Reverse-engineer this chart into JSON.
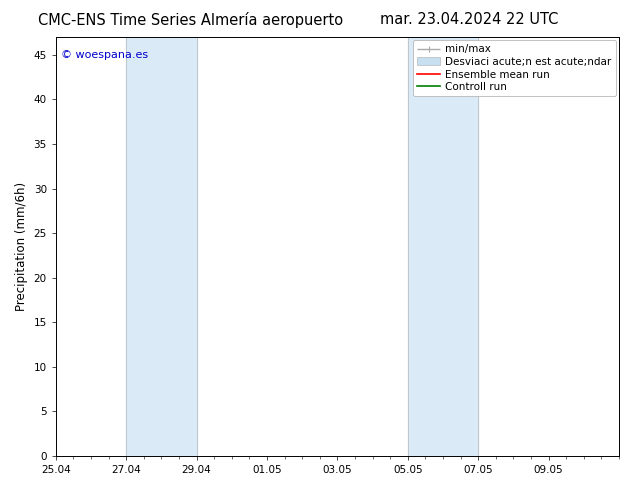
{
  "title": "CMC-ENS Time Series Almería aeropuerto    mar. 23.04.2024 22 UTC",
  "title_left": "CMC-ENS Time Series Almería aeropuerto",
  "title_right": "mar. 23.04.2024 22 UTC",
  "ylabel": "Precipitation (mm/6h)",
  "watermark": "© woespana.es",
  "ylim": [
    0,
    47
  ],
  "yticks": [
    0,
    5,
    10,
    15,
    20,
    25,
    30,
    35,
    40,
    45
  ],
  "xtick_labels": [
    "25.04",
    "27.04",
    "29.04",
    "01.05",
    "03.05",
    "05.05",
    "07.05",
    "09.05"
  ],
  "xmin": 0,
  "xmax": 16,
  "xtick_positions": [
    0,
    2,
    4,
    6,
    8,
    10,
    12,
    14
  ],
  "shaded_regions": [
    {
      "xmin": 2,
      "xmax": 4,
      "color": "#daeaf7"
    },
    {
      "xmin": 10,
      "xmax": 12,
      "color": "#daeaf7"
    }
  ],
  "legend_label_minmax": "min/max",
  "legend_label_std": "Desviaci acute;n est acute;ndar",
  "legend_label_ensemble": "Ensemble mean run",
  "legend_label_control": "Controll run",
  "color_minmax": "#aaaaaa",
  "color_std": "#c8dff0",
  "color_ensemble": "red",
  "color_control": "green",
  "background_color": "#ffffff",
  "plot_bg_color": "#ffffff",
  "border_color": "#000000",
  "title_fontsize": 10.5,
  "tick_fontsize": 7.5,
  "label_fontsize": 8.5,
  "legend_fontsize": 7.5,
  "watermark_fontsize": 8
}
